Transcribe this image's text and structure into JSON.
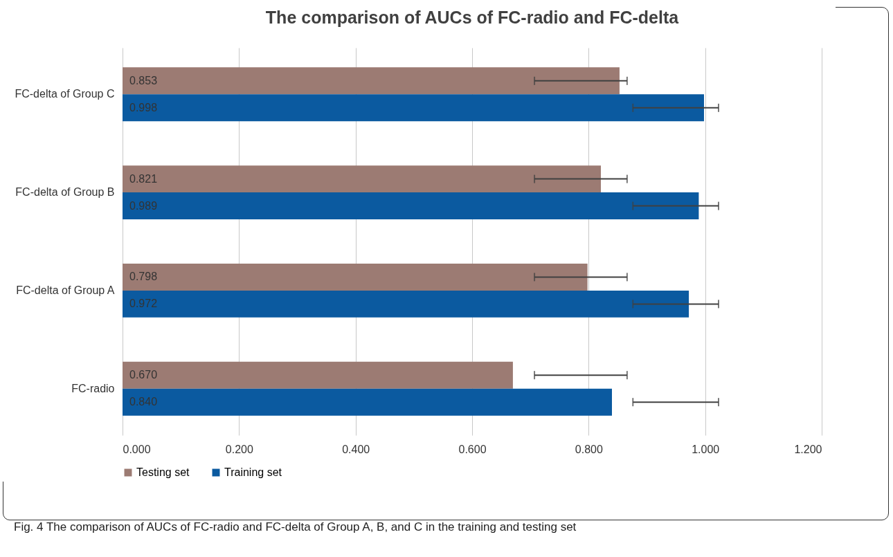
{
  "chart_data": {
    "type": "bar",
    "orientation": "horizontal",
    "title": "The comparison of AUCs of FC-radio and FC-delta",
    "categories": [
      "FC-delta of Group C",
      "FC-delta of Group B",
      "FC-delta of Group A",
      "FC-radio"
    ],
    "series": [
      {
        "name": "Testing set",
        "color": "#9c7b73",
        "values": [
          0.853,
          0.821,
          0.798,
          0.67
        ],
        "value_labels": [
          "0.853",
          "0.821",
          "0.798",
          "0.670"
        ],
        "errors": [
          [
            0.707,
            0.866
          ],
          [
            0.707,
            0.866
          ],
          [
            0.707,
            0.866
          ],
          [
            0.707,
            0.866
          ]
        ]
      },
      {
        "name": "Training set",
        "color": "#0b5aa0",
        "values": [
          0.998,
          0.989,
          0.972,
          0.84
        ],
        "value_labels": [
          "0.998",
          "0.989",
          "0.972",
          "0.840"
        ],
        "errors": [
          [
            0.876,
            1.023
          ],
          [
            0.876,
            1.023
          ],
          [
            0.876,
            1.023
          ],
          [
            0.876,
            1.023
          ]
        ]
      }
    ],
    "xlim": [
      0,
      1.2
    ],
    "xticks": [
      {
        "value": 0,
        "label": "0.000"
      },
      {
        "value": 0.2,
        "label": "0.200"
      },
      {
        "value": 0.4,
        "label": "0.400"
      },
      {
        "value": 0.6,
        "label": "0.600"
      },
      {
        "value": 0.8,
        "label": "0.800"
      },
      {
        "value": 1,
        "label": "1.000"
      },
      {
        "value": 1.2,
        "label": "1.200"
      }
    ],
    "grid": "x",
    "legend": "bottom",
    "annotations": [
      "Fig. 4  The comparison of AUCs of FC-radio and FC-delta of Group A, B, and C in the training and testing set"
    ]
  }
}
